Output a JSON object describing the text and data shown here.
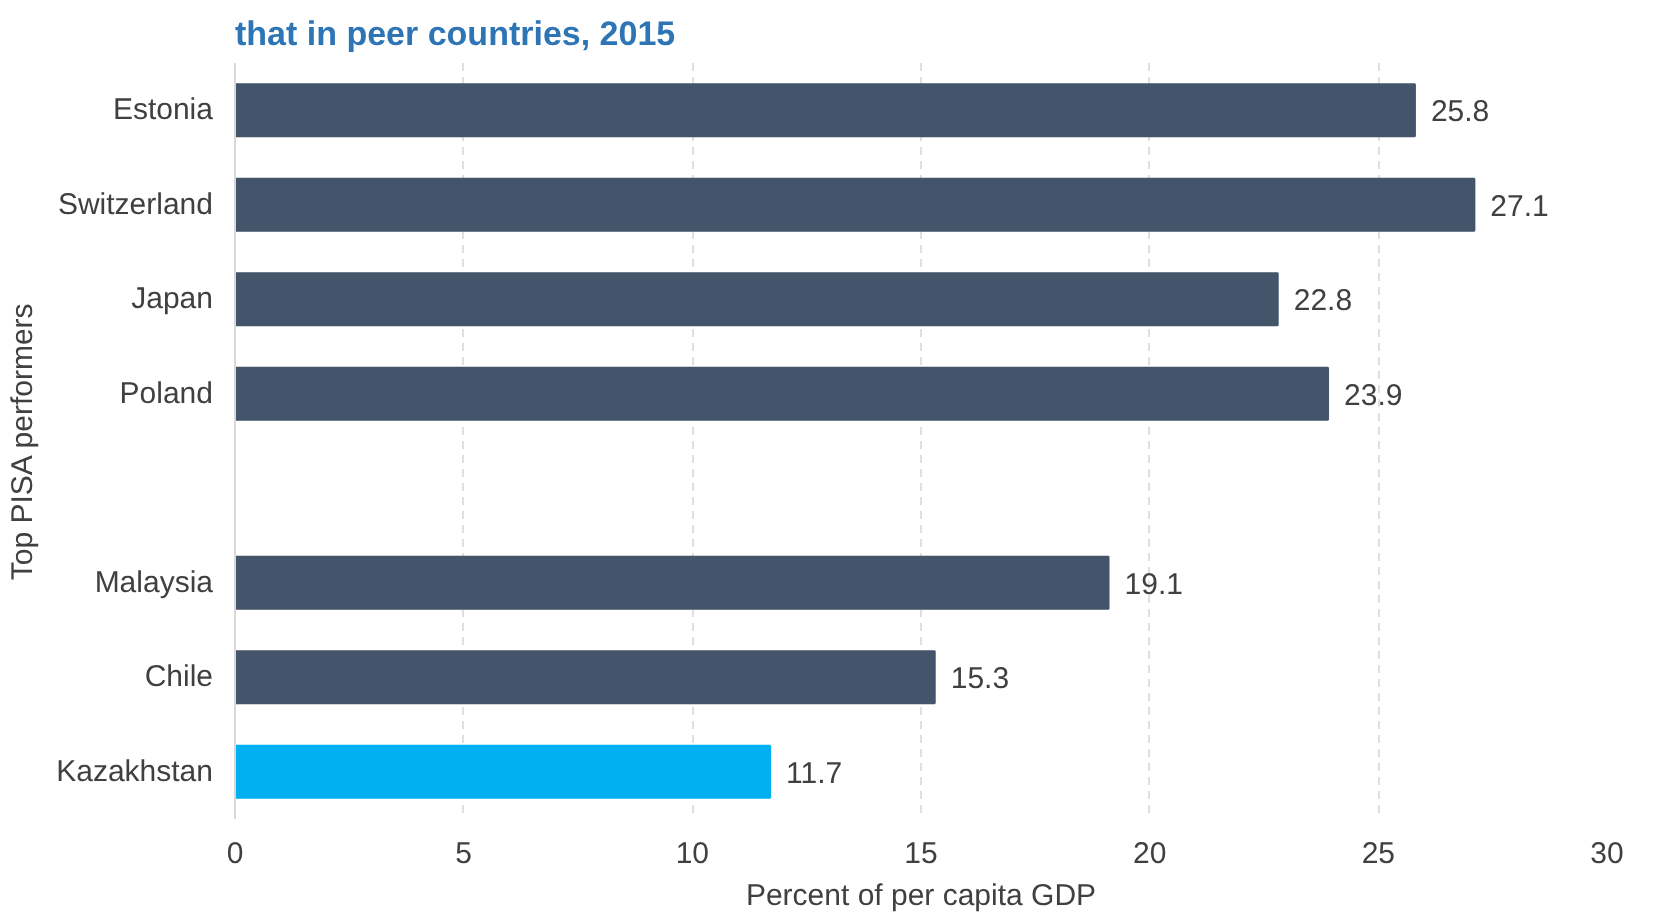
{
  "chart_data": {
    "type": "bar",
    "orientation": "horizontal",
    "title": "that in peer countries, 2015",
    "xlabel": "Percent of per capita GDP",
    "ylabel": "Top PISA performers",
    "categories": [
      "Estonia",
      "Switzerland",
      "Japan",
      "Poland",
      null,
      "Malaysia",
      "Chile",
      "Kazakhstan"
    ],
    "values": [
      25.8,
      27.1,
      22.8,
      23.9,
      null,
      19.1,
      15.3,
      11.7
    ],
    "colors": [
      "#44546a",
      "#44546a",
      "#44546a",
      "#44546a",
      "#44546a",
      "#44546a",
      "#44546a",
      "#00b0f0"
    ],
    "xlim": [
      0,
      30
    ],
    "xticks": [
      0,
      5,
      10,
      15,
      20,
      25,
      30
    ],
    "grid": "x",
    "data_labels": true
  }
}
